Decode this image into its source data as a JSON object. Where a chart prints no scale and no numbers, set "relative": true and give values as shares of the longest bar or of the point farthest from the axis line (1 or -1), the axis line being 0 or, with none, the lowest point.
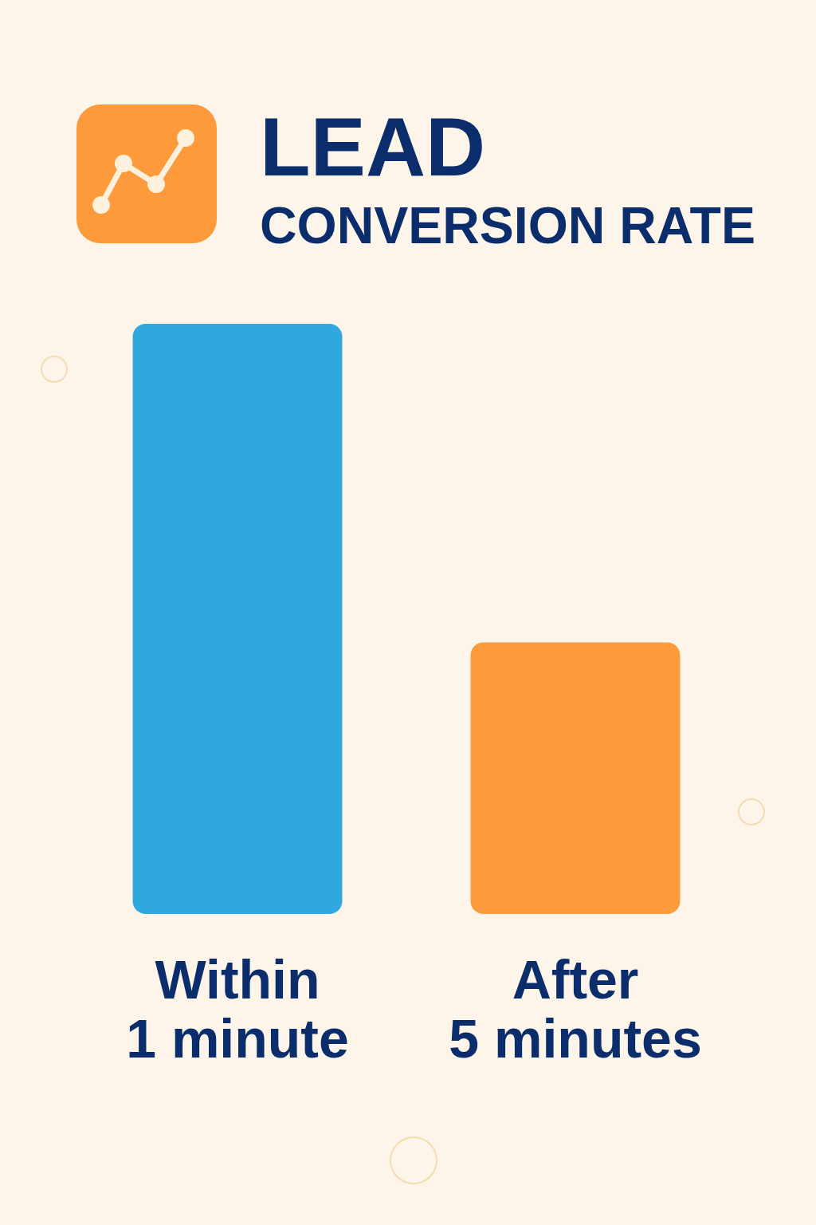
{
  "chart_data": {
    "type": "bar",
    "title": "LEAD",
    "subtitle": "CONVERSION RATE",
    "categories": [
      "Within\n1 minute",
      "After\n5 minutes"
    ],
    "values": [
      1,
      0.46
    ],
    "colors": [
      "#2fa8de",
      "#fd9a3b"
    ],
    "relative": true
  }
}
